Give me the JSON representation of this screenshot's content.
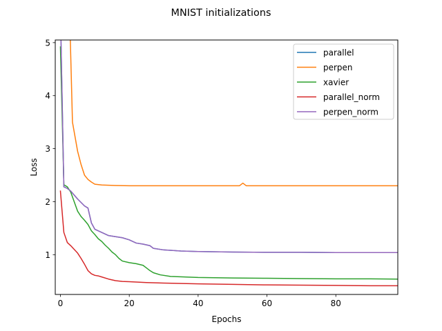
{
  "chart_data": {
    "type": "line",
    "title": "MNIST initializations",
    "xlabel": "Epochs",
    "ylabel": "Loss",
    "xlim": [
      -1.5,
      98
    ],
    "ylim": [
      0.25,
      5.05
    ],
    "x_ticks": [
      0,
      20,
      40,
      60,
      80
    ],
    "y_ticks": [
      1,
      2,
      3,
      4,
      5
    ],
    "grid": false,
    "legend_position": "top-right",
    "series": [
      {
        "name": "parallel",
        "color": "#1f77b4",
        "points": [
          [
            0,
            5.6
          ],
          [
            1,
            2.28
          ],
          [
            2,
            2.25
          ],
          [
            3,
            2.2
          ],
          [
            5,
            2.05
          ],
          [
            7,
            1.92
          ],
          [
            8,
            1.88
          ],
          [
            9,
            1.6
          ],
          [
            10,
            1.48
          ],
          [
            12,
            1.42
          ],
          [
            14,
            1.36
          ],
          [
            18,
            1.32
          ],
          [
            20,
            1.28
          ],
          [
            22,
            1.22
          ],
          [
            24,
            1.2
          ],
          [
            26,
            1.17
          ],
          [
            27,
            1.12
          ],
          [
            30,
            1.09
          ],
          [
            35,
            1.07
          ],
          [
            40,
            1.06
          ],
          [
            50,
            1.05
          ],
          [
            60,
            1.045
          ],
          [
            70,
            1.045
          ],
          [
            80,
            1.04
          ],
          [
            90,
            1.04
          ],
          [
            98,
            1.04
          ]
        ]
      },
      {
        "name": "perpen",
        "color": "#ff7f0e",
        "points": [
          [
            2.5,
            6.0
          ],
          [
            3.5,
            3.5
          ],
          [
            5,
            2.95
          ],
          [
            6,
            2.7
          ],
          [
            7,
            2.5
          ],
          [
            8,
            2.42
          ],
          [
            9,
            2.37
          ],
          [
            10,
            2.33
          ],
          [
            12,
            2.315
          ],
          [
            16,
            2.305
          ],
          [
            20,
            2.3
          ],
          [
            30,
            2.3
          ],
          [
            40,
            2.3
          ],
          [
            50,
            2.3
          ],
          [
            52,
            2.3
          ],
          [
            53,
            2.35
          ],
          [
            54,
            2.3
          ],
          [
            60,
            2.3
          ],
          [
            70,
            2.3
          ],
          [
            80,
            2.3
          ],
          [
            90,
            2.3
          ],
          [
            98,
            2.3
          ]
        ]
      },
      {
        "name": "xavier",
        "color": "#2ca02c",
        "points": [
          [
            0,
            4.92
          ],
          [
            1,
            2.32
          ],
          [
            2,
            2.28
          ],
          [
            3,
            2.18
          ],
          [
            4,
            2.0
          ],
          [
            5,
            1.82
          ],
          [
            6,
            1.72
          ],
          [
            7,
            1.65
          ],
          [
            8,
            1.57
          ],
          [
            9,
            1.45
          ],
          [
            10,
            1.38
          ],
          [
            11,
            1.3
          ],
          [
            12,
            1.25
          ],
          [
            13,
            1.18
          ],
          [
            14,
            1.12
          ],
          [
            15,
            1.05
          ],
          [
            16,
            1.0
          ],
          [
            17,
            0.93
          ],
          [
            18,
            0.88
          ],
          [
            20,
            0.85
          ],
          [
            22,
            0.83
          ],
          [
            24,
            0.8
          ],
          [
            25,
            0.75
          ],
          [
            26,
            0.7
          ],
          [
            27,
            0.66
          ],
          [
            29,
            0.62
          ],
          [
            32,
            0.59
          ],
          [
            40,
            0.57
          ],
          [
            50,
            0.56
          ],
          [
            60,
            0.555
          ],
          [
            70,
            0.55
          ],
          [
            80,
            0.545
          ],
          [
            90,
            0.545
          ],
          [
            98,
            0.54
          ]
        ]
      },
      {
        "name": "parallel_norm",
        "color": "#d62728",
        "points": [
          [
            0,
            2.2
          ],
          [
            1,
            1.42
          ],
          [
            2,
            1.23
          ],
          [
            3,
            1.17
          ],
          [
            4,
            1.1
          ],
          [
            5,
            1.03
          ],
          [
            6,
            0.93
          ],
          [
            7,
            0.82
          ],
          [
            8,
            0.7
          ],
          [
            9,
            0.64
          ],
          [
            10,
            0.61
          ],
          [
            11,
            0.6
          ],
          [
            12,
            0.58
          ],
          [
            14,
            0.54
          ],
          [
            16,
            0.51
          ],
          [
            18,
            0.495
          ],
          [
            20,
            0.49
          ],
          [
            25,
            0.475
          ],
          [
            30,
            0.465
          ],
          [
            40,
            0.45
          ],
          [
            50,
            0.44
          ],
          [
            60,
            0.43
          ],
          [
            70,
            0.425
          ],
          [
            80,
            0.42
          ],
          [
            90,
            0.415
          ],
          [
            98,
            0.415
          ]
        ]
      },
      {
        "name": "perpen_norm",
        "color": "#9467bd",
        "points": [
          [
            0,
            5.6
          ],
          [
            1,
            2.28
          ],
          [
            2,
            2.25
          ],
          [
            3,
            2.2
          ],
          [
            5,
            2.05
          ],
          [
            7,
            1.92
          ],
          [
            8,
            1.88
          ],
          [
            9,
            1.6
          ],
          [
            10,
            1.48
          ],
          [
            12,
            1.42
          ],
          [
            14,
            1.36
          ],
          [
            18,
            1.32
          ],
          [
            20,
            1.28
          ],
          [
            22,
            1.22
          ],
          [
            24,
            1.2
          ],
          [
            26,
            1.17
          ],
          [
            27,
            1.12
          ],
          [
            30,
            1.09
          ],
          [
            35,
            1.07
          ],
          [
            40,
            1.06
          ],
          [
            50,
            1.05
          ],
          [
            60,
            1.045
          ],
          [
            70,
            1.045
          ],
          [
            80,
            1.04
          ],
          [
            90,
            1.04
          ],
          [
            98,
            1.04
          ]
        ]
      }
    ]
  }
}
